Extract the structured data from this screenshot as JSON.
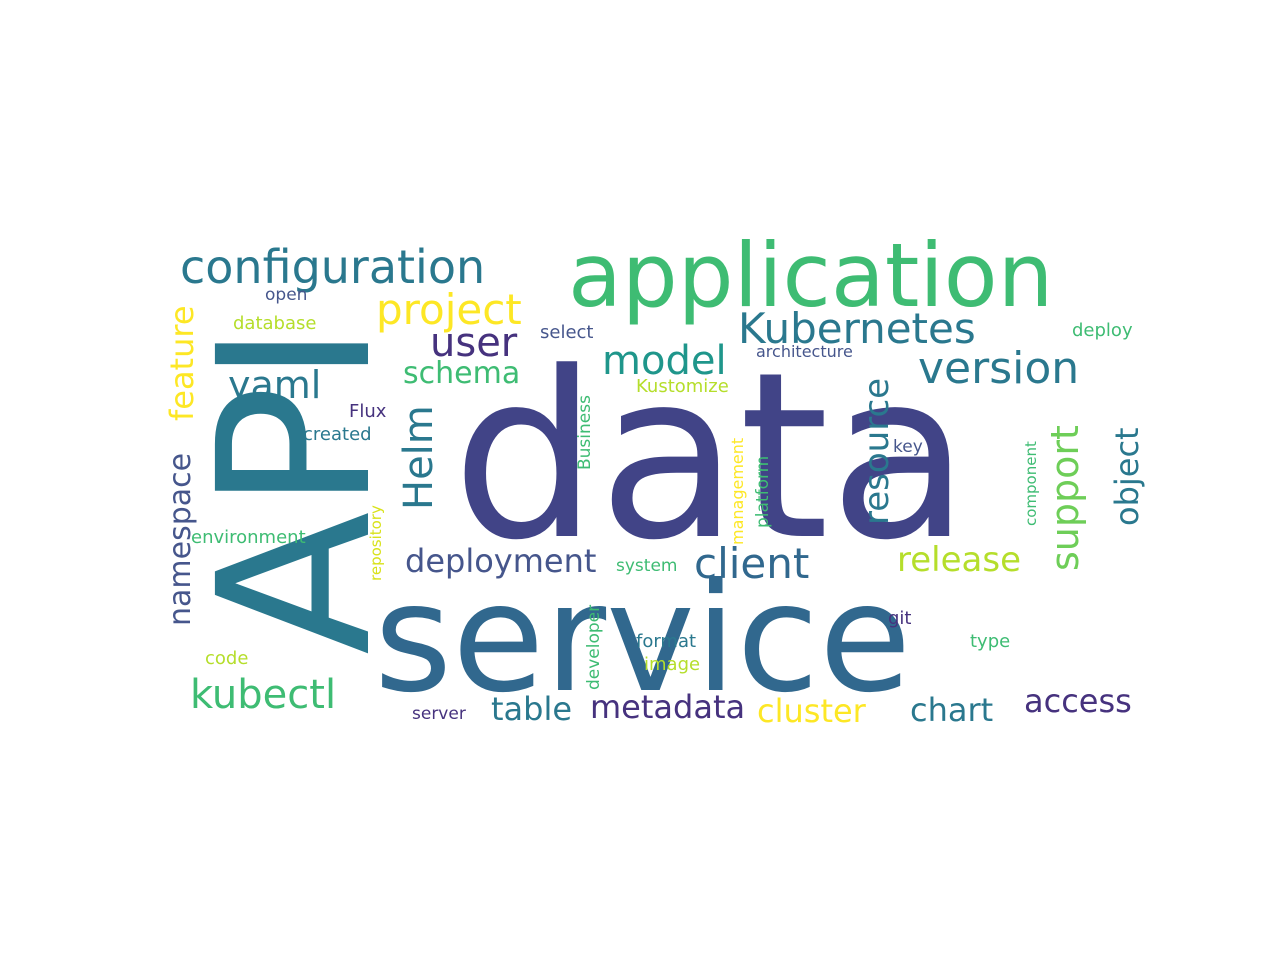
{
  "words": [
    {
      "text": "data",
      "color": "#414487"
    },
    {
      "text": "API",
      "color": "#2a788e"
    },
    {
      "text": "service",
      "color": "#31688e"
    },
    {
      "text": "application",
      "color": "#3ebc73"
    },
    {
      "text": "configuration",
      "color": "#2a788e"
    },
    {
      "text": "Kubernetes",
      "color": "#2a788e"
    },
    {
      "text": "project",
      "color": "#fde725"
    },
    {
      "text": "version",
      "color": "#2a788e"
    },
    {
      "text": "model",
      "color": "#1f968b"
    },
    {
      "text": "user",
      "color": "#46327e"
    },
    {
      "text": "yaml",
      "color": "#2a788e"
    },
    {
      "text": "schema",
      "color": "#3ebc73"
    },
    {
      "text": "Helm",
      "color": "#2a788e"
    },
    {
      "text": "feature",
      "color": "#fde725"
    },
    {
      "text": "namespace",
      "color": "#46568c"
    },
    {
      "text": "deployment",
      "color": "#46568c"
    },
    {
      "text": "client",
      "color": "#31688e"
    },
    {
      "text": "release",
      "color": "#b5de2b"
    },
    {
      "text": "resource",
      "color": "#2a788e"
    },
    {
      "text": "support",
      "color": "#6ece58"
    },
    {
      "text": "object",
      "color": "#2a788e"
    },
    {
      "text": "kubectl",
      "color": "#3ebc73"
    },
    {
      "text": "table",
      "color": "#2a788e"
    },
    {
      "text": "metadata",
      "color": "#46327e"
    },
    {
      "text": "cluster",
      "color": "#fde725"
    },
    {
      "text": "chart",
      "color": "#2a788e"
    },
    {
      "text": "access",
      "color": "#46327e"
    },
    {
      "text": "open",
      "color": "#46568c"
    },
    {
      "text": "database",
      "color": "#b5de2b"
    },
    {
      "text": "select",
      "color": "#46568c"
    },
    {
      "text": "deploy",
      "color": "#3ebc73"
    },
    {
      "text": "architecture",
      "color": "#46568c"
    },
    {
      "text": "Kustomize",
      "color": "#b5de2b"
    },
    {
      "text": "Flux",
      "color": "#46327e"
    },
    {
      "text": "created",
      "color": "#2a788e"
    },
    {
      "text": "Business",
      "color": "#3ebc73"
    },
    {
      "text": "management",
      "color": "#fde725"
    },
    {
      "text": "platform",
      "color": "#3ebc73"
    },
    {
      "text": "component",
      "color": "#3ebc73"
    },
    {
      "text": "key",
      "color": "#46568c"
    },
    {
      "text": "repository",
      "color": "#d8e219"
    },
    {
      "text": "environment",
      "color": "#3ebc73"
    },
    {
      "text": "system",
      "color": "#3ebc73"
    },
    {
      "text": "developer",
      "color": "#3ebc73"
    },
    {
      "text": "git",
      "color": "#46327e"
    },
    {
      "text": "type",
      "color": "#3ebc73"
    },
    {
      "text": "format",
      "color": "#2a788e"
    },
    {
      "text": "image",
      "color": "#b5de2b"
    },
    {
      "text": "code",
      "color": "#b5de2b"
    },
    {
      "text": "server",
      "color": "#46327e"
    }
  ]
}
